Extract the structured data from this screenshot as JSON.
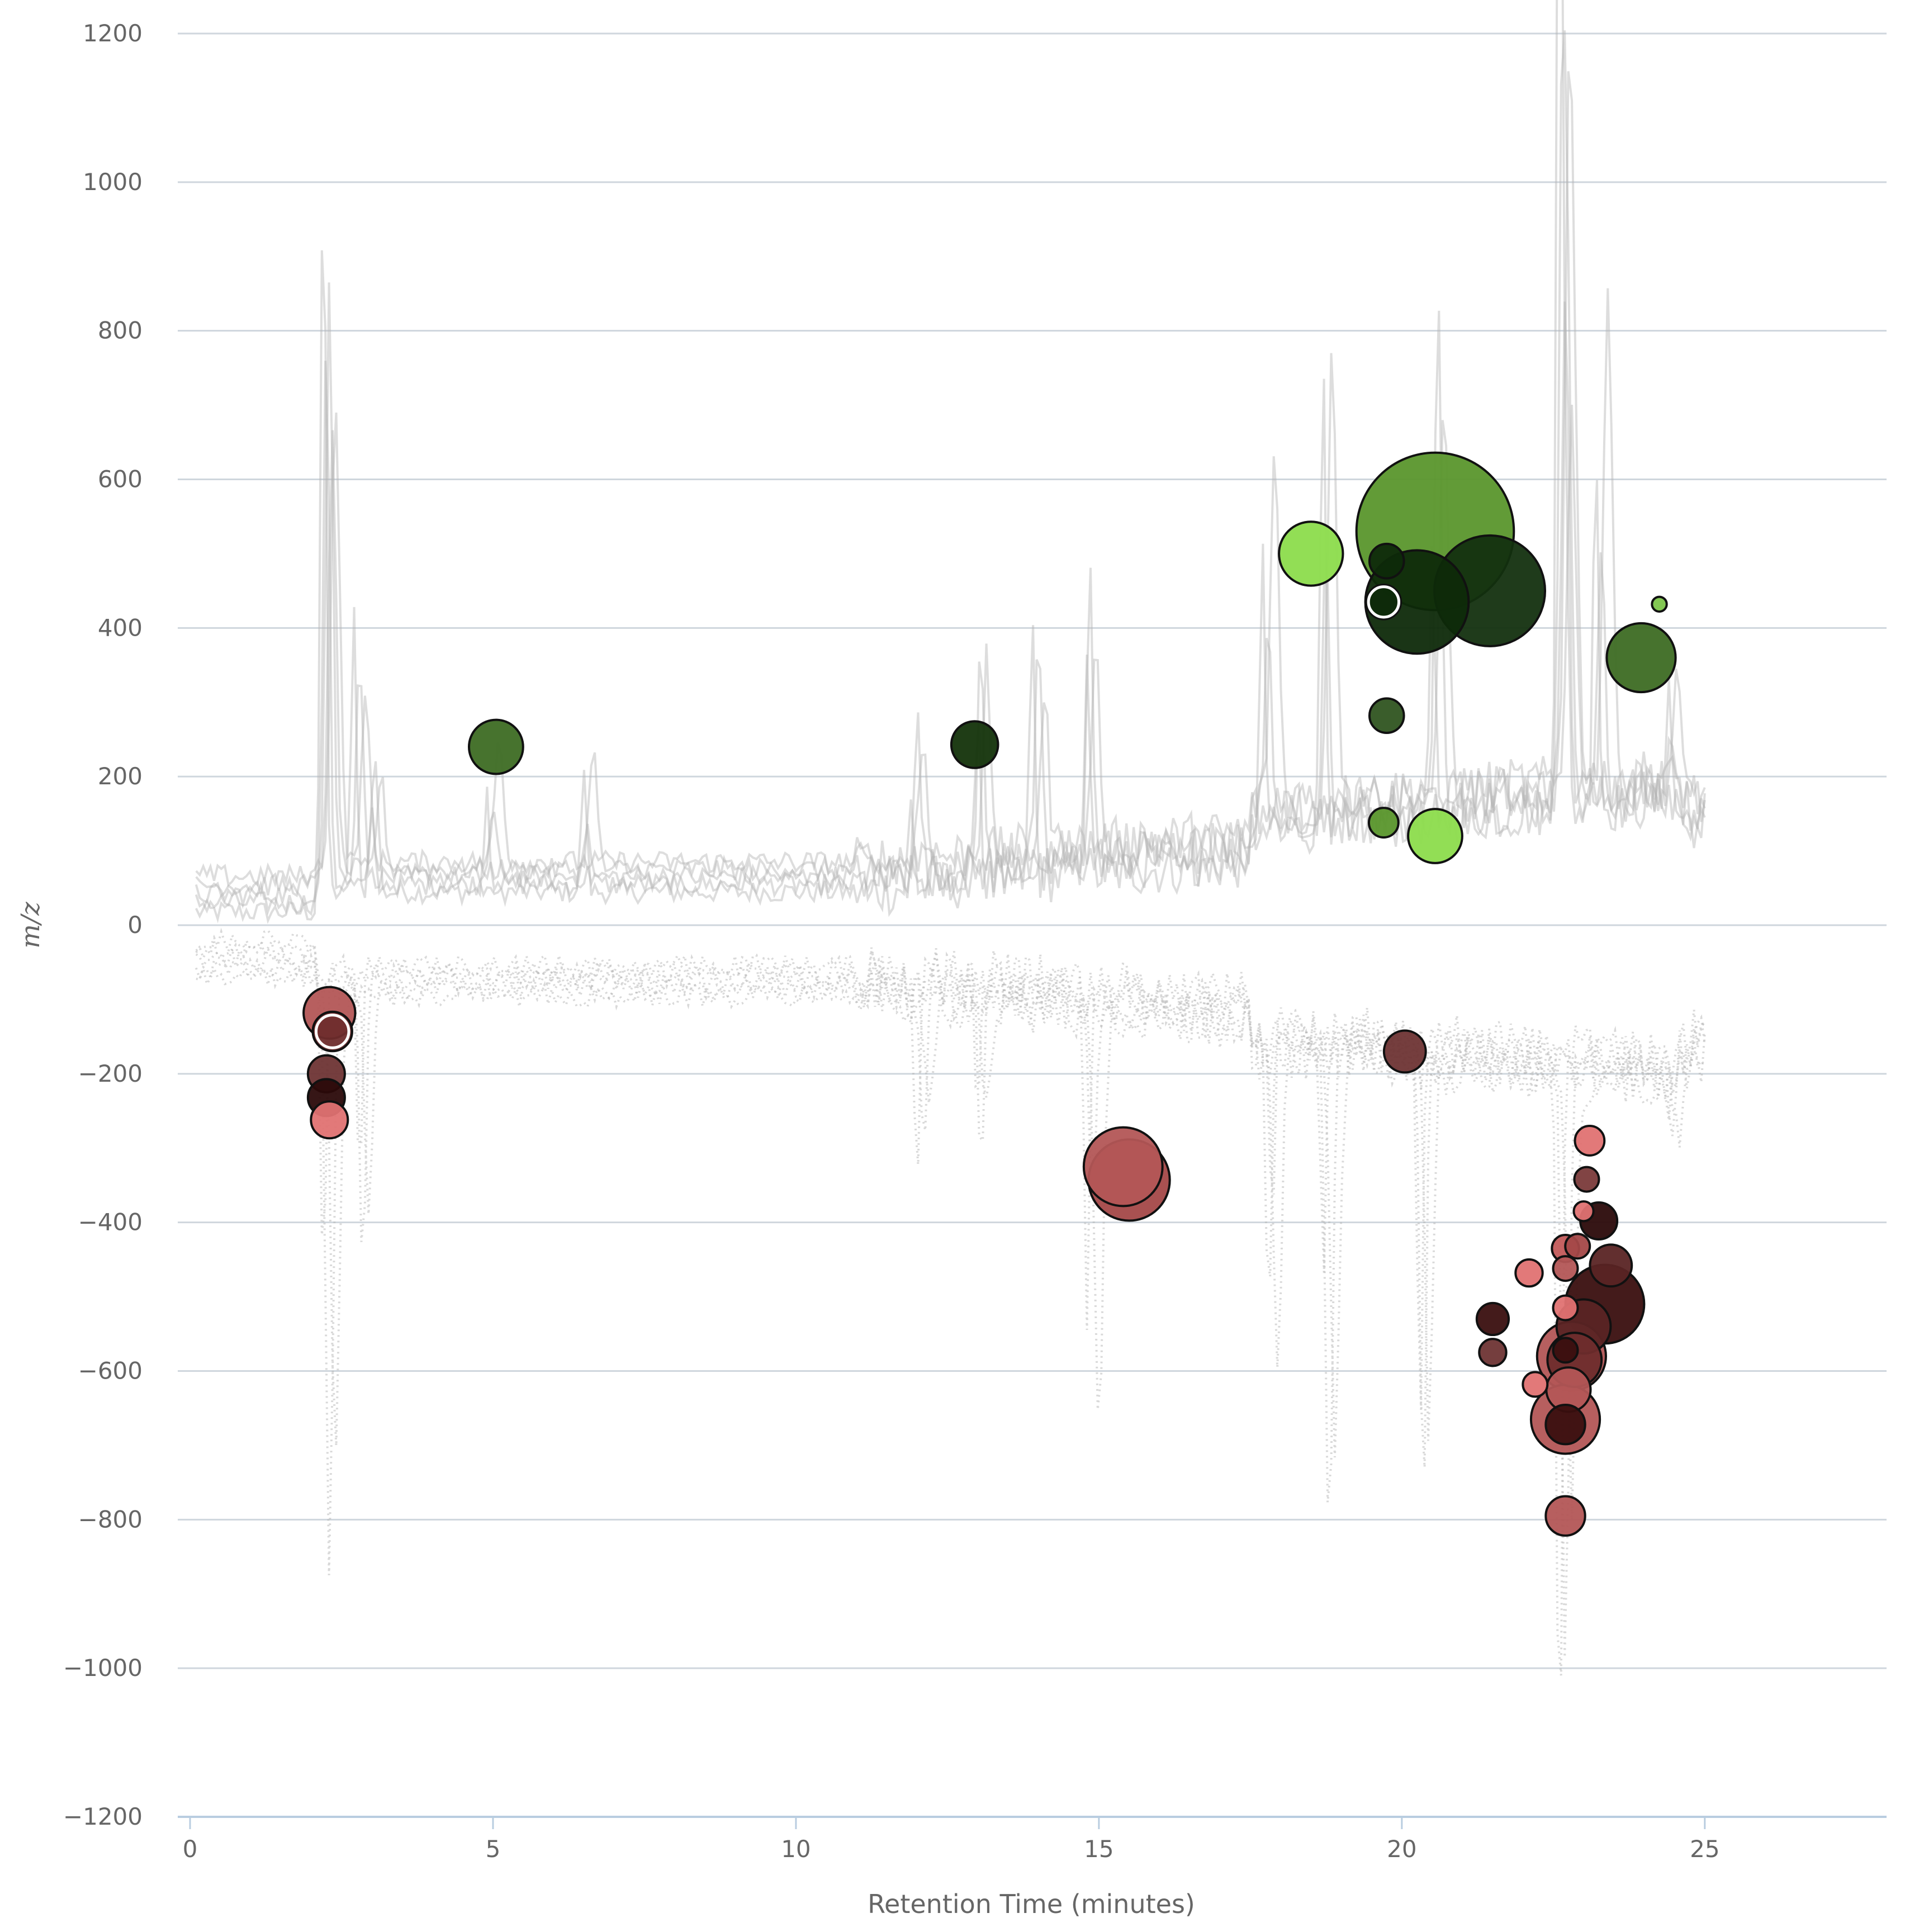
{
  "chart_data": {
    "type": "scatter",
    "subtype": "bubble",
    "title": "",
    "xlabel": "Retention Time (minutes)",
    "ylabel": "m/z",
    "xlim": [
      0,
      28
    ],
    "ylim": [
      -1200,
      1200
    ],
    "x_ticks": [
      0,
      5,
      10,
      15,
      20,
      25
    ],
    "y_ticks": [
      1200,
      1000,
      800,
      600,
      400,
      200,
      0,
      -200,
      -400,
      -600,
      -800,
      -1000,
      -1200
    ],
    "grid": "horizontal",
    "legend": "none",
    "background_traces": {
      "positive": {
        "style": "solid",
        "color": "#b4b4b4",
        "count": 5
      },
      "negative": {
        "style": "dotted",
        "color": "#b4b4b4",
        "count": 5
      },
      "peaks_positive": [
        {
          "x": 2.3,
          "y": 810
        },
        {
          "x": 2.3,
          "y": 750
        },
        {
          "x": 2.8,
          "y": 390
        },
        {
          "x": 3.1,
          "y": 230
        },
        {
          "x": 5.0,
          "y": 165
        },
        {
          "x": 6.6,
          "y": 170
        },
        {
          "x": 12.0,
          "y": 200
        },
        {
          "x": 13.1,
          "y": 340
        },
        {
          "x": 14.0,
          "y": 350
        },
        {
          "x": 14.9,
          "y": 575
        },
        {
          "x": 17.8,
          "y": 470
        },
        {
          "x": 18.8,
          "y": 660
        },
        {
          "x": 20.6,
          "y": 660
        },
        {
          "x": 22.7,
          "y": 1045
        },
        {
          "x": 22.7,
          "y": 900
        },
        {
          "x": 22.8,
          "y": 820
        },
        {
          "x": 23.3,
          "y": 665
        },
        {
          "x": 24.5,
          "y": 185
        }
      ],
      "peaks_negative": [
        {
          "x": 2.3,
          "y": -810
        },
        {
          "x": 2.9,
          "y": -390
        },
        {
          "x": 12.1,
          "y": -280
        },
        {
          "x": 13.1,
          "y": -300
        },
        {
          "x": 14.9,
          "y": -570
        },
        {
          "x": 17.9,
          "y": -430
        },
        {
          "x": 18.8,
          "y": -650
        },
        {
          "x": 20.4,
          "y": -650
        },
        {
          "x": 22.7,
          "y": -1035
        },
        {
          "x": 24.5,
          "y": -180
        }
      ]
    },
    "series": [
      {
        "polarity": "positive",
        "points": [
          {
            "x": 5.05,
            "y": 240,
            "size": 22,
            "color": "#3d6b23"
          },
          {
            "x": 12.95,
            "y": 243,
            "size": 19,
            "color": "#13330a"
          },
          {
            "x": 18.5,
            "y": 500,
            "size": 26,
            "color": "#8cdc4c"
          },
          {
            "x": 20.55,
            "y": 530,
            "size": 64,
            "color": "#5a962c"
          },
          {
            "x": 21.45,
            "y": 450,
            "size": 45,
            "color": "#13300f"
          },
          {
            "x": 20.25,
            "y": 435,
            "size": 42,
            "color": "#0e2a0a"
          },
          {
            "x": 19.75,
            "y": 490,
            "size": 14,
            "color": "#0e2a0a"
          },
          {
            "x": 19.7,
            "y": 435,
            "size": 14,
            "color": "#0e2a0a"
          },
          {
            "x": 19.75,
            "y": 282,
            "size": 14,
            "color": "#2f5420"
          },
          {
            "x": 19.7,
            "y": 138,
            "size": 12,
            "color": "#5a962c"
          },
          {
            "x": 20.55,
            "y": 120,
            "size": 22,
            "color": "#8cdc4c"
          },
          {
            "x": 23.95,
            "y": 360,
            "size": 28,
            "color": "#3d6b23"
          },
          {
            "x": 24.25,
            "y": 432,
            "size": 6,
            "color": "#7cc44a"
          }
        ]
      },
      {
        "polarity": "negative",
        "points": [
          {
            "x": 2.3,
            "y": -118,
            "size": 21,
            "color": "#b35656"
          },
          {
            "x": 2.35,
            "y": -143,
            "size": 16,
            "color": "#6e2c2c"
          },
          {
            "x": 2.25,
            "y": -200,
            "size": 15,
            "color": "#6e3434"
          },
          {
            "x": 2.25,
            "y": -232,
            "size": 15,
            "color": "#2b0a0a"
          },
          {
            "x": 2.3,
            "y": -262,
            "size": 15,
            "color": "#e07272"
          },
          {
            "x": 15.4,
            "y": -325,
            "size": 32,
            "color": "#b35656"
          },
          {
            "x": 15.5,
            "y": -343,
            "size": 33,
            "color": "#a44848"
          },
          {
            "x": 20.05,
            "y": -170,
            "size": 17,
            "color": "#6e3434"
          },
          {
            "x": 23.1,
            "y": -290,
            "size": 12,
            "color": "#e07272"
          },
          {
            "x": 23.05,
            "y": -342,
            "size": 10,
            "color": "#7a3a3a"
          },
          {
            "x": 23.0,
            "y": -385,
            "size": 8,
            "color": "#e07272"
          },
          {
            "x": 23.25,
            "y": -398,
            "size": 15,
            "color": "#2b0a0a"
          },
          {
            "x": 22.7,
            "y": -435,
            "size": 11,
            "color": "#c25a5a"
          },
          {
            "x": 22.9,
            "y": -432,
            "size": 10,
            "color": "#a44848"
          },
          {
            "x": 23.45,
            "y": -458,
            "size": 17,
            "color": "#5a2424"
          },
          {
            "x": 22.1,
            "y": -468,
            "size": 11,
            "color": "#e07272"
          },
          {
            "x": 22.7,
            "y": -462,
            "size": 10,
            "color": "#b35656"
          },
          {
            "x": 23.35,
            "y": -510,
            "size": 32,
            "color": "#3a0f0f"
          },
          {
            "x": 21.5,
            "y": -530,
            "size": 13,
            "color": "#3a0f0f"
          },
          {
            "x": 22.7,
            "y": -515,
            "size": 10,
            "color": "#e07272"
          },
          {
            "x": 23.0,
            "y": -540,
            "size": 22,
            "color": "#5a2424"
          },
          {
            "x": 22.8,
            "y": -580,
            "size": 28,
            "color": "#b35656"
          },
          {
            "x": 22.85,
            "y": -585,
            "size": 22,
            "color": "#6e2c2c"
          },
          {
            "x": 22.7,
            "y": -572,
            "size": 10,
            "color": "#3a0f0f"
          },
          {
            "x": 21.5,
            "y": -575,
            "size": 11,
            "color": "#6e3434"
          },
          {
            "x": 22.2,
            "y": -618,
            "size": 10,
            "color": "#e07272"
          },
          {
            "x": 22.75,
            "y": -625,
            "size": 18,
            "color": "#b35656"
          },
          {
            "x": 22.7,
            "y": -665,
            "size": 28,
            "color": "#b35656"
          },
          {
            "x": 22.7,
            "y": -672,
            "size": 16,
            "color": "#3a0f0f"
          },
          {
            "x": 22.7,
            "y": -795,
            "size": 16,
            "color": "#b35656"
          }
        ]
      }
    ]
  }
}
